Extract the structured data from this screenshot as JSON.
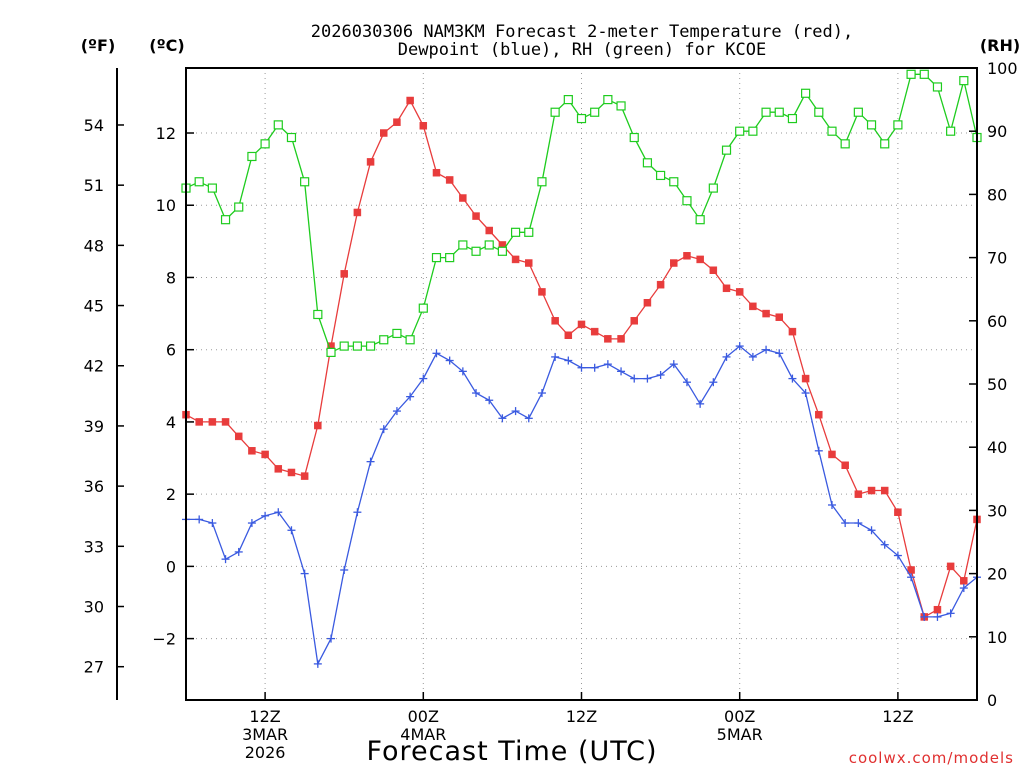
{
  "chart_data": {
    "type": "line",
    "title_line1": "2026030306 NAM3KM Forecast 2-meter Temperature (red),",
    "title_line2": "Dewpoint (blue), RH (green) for KCOE",
    "xlabel": "Forecast Time (UTC)",
    "credit": "coolwx.com/models",
    "axis_units": {
      "fahrenheit": "(ºF)",
      "celsius": "(ºC)",
      "rh": "(RH)"
    },
    "ylim_celsius": [
      -3.7,
      13.8
    ],
    "ylim_rh": [
      0,
      100
    ],
    "fahrenheit_ticks": [
      27,
      30,
      33,
      36,
      39,
      42,
      45,
      48,
      51,
      54
    ],
    "celsius_ticks": [
      -2,
      0,
      2,
      4,
      6,
      8,
      10,
      12
    ],
    "rh_ticks": [
      0,
      10,
      20,
      30,
      40,
      50,
      60,
      70,
      80,
      90,
      100
    ],
    "x_ticks": [
      {
        "hour": 6,
        "labels": [
          "12Z",
          "3MAR",
          "2026"
        ]
      },
      {
        "hour": 18,
        "labels": [
          "00Z",
          "4MAR"
        ]
      },
      {
        "hour": 30,
        "labels": [
          "12Z"
        ]
      },
      {
        "hour": 42,
        "labels": [
          "00Z",
          "5MAR"
        ]
      },
      {
        "hour": 54,
        "labels": [
          "12Z"
        ]
      }
    ],
    "x_range_hours": [
      0,
      60
    ],
    "x_hours": [
      0,
      1,
      2,
      3,
      4,
      5,
      6,
      7,
      8,
      9,
      10,
      11,
      12,
      13,
      14,
      15,
      16,
      17,
      18,
      19,
      20,
      21,
      22,
      23,
      24,
      25,
      26,
      27,
      28,
      29,
      30,
      31,
      32,
      33,
      34,
      35,
      36,
      37,
      38,
      39,
      40,
      41,
      42,
      43,
      44,
      45,
      46,
      47,
      48,
      49,
      50,
      51,
      52,
      53,
      54,
      55,
      56,
      57,
      58,
      59,
      60
    ],
    "series": [
      {
        "name": "2-meter Temperature",
        "unit": "C",
        "color": "#e83c3c",
        "marker": "filled-square",
        "values": [
          4.2,
          4.0,
          4.0,
          4.0,
          3.6,
          3.2,
          3.1,
          2.7,
          2.6,
          2.5,
          3.9,
          6.1,
          8.1,
          9.8,
          11.2,
          12.0,
          12.3,
          12.9,
          12.2,
          10.9,
          10.7,
          10.2,
          9.7,
          9.3,
          8.9,
          8.5,
          8.4,
          7.6,
          6.8,
          6.4,
          6.7,
          6.5,
          6.3,
          6.3,
          6.8,
          7.3,
          7.8,
          8.4,
          8.6,
          8.5,
          8.2,
          7.7,
          7.6,
          7.2,
          7.0,
          6.9,
          6.5,
          5.2,
          4.2,
          3.1,
          2.8,
          2.0,
          2.1,
          2.1,
          1.5,
          -0.1,
          -1.4,
          -1.2,
          0.0,
          -0.4,
          1.3
        ]
      },
      {
        "name": "Dewpoint",
        "unit": "C",
        "color": "#3a5ae0",
        "marker": "plus",
        "values": [
          1.3,
          1.3,
          1.2,
          0.2,
          0.4,
          1.2,
          1.4,
          1.5,
          1.0,
          -0.2,
          -2.7,
          -2.0,
          -0.1,
          1.5,
          2.9,
          3.8,
          4.3,
          4.7,
          5.2,
          5.9,
          5.7,
          5.4,
          4.8,
          4.6,
          4.1,
          4.3,
          4.1,
          4.8,
          5.8,
          5.7,
          5.5,
          5.5,
          5.6,
          5.4,
          5.2,
          5.2,
          5.3,
          5.6,
          5.1,
          4.5,
          5.1,
          5.8,
          6.1,
          5.8,
          6.0,
          5.9,
          5.2,
          4.8,
          3.2,
          1.7,
          1.2,
          1.2,
          1.0,
          0.6,
          0.3,
          -0.3,
          -1.4,
          -1.4,
          -1.3,
          -0.6,
          -0.3
        ]
      },
      {
        "name": "RH",
        "unit": "%",
        "color": "#1ecc1e",
        "marker": "open-square",
        "values": [
          81,
          82,
          81,
          76,
          78,
          86,
          88,
          91,
          89,
          82,
          61,
          55,
          56,
          56,
          56,
          57,
          58,
          57,
          62,
          70,
          70,
          72,
          71,
          72,
          71,
          74,
          74,
          82,
          93,
          95,
          92,
          93,
          95,
          94,
          89,
          85,
          83,
          82,
          79,
          76,
          81,
          87,
          90,
          90,
          93,
          93,
          92,
          96,
          93,
          90,
          88,
          93,
          91,
          88,
          91,
          99,
          99,
          97,
          90,
          98,
          89
        ]
      }
    ]
  }
}
